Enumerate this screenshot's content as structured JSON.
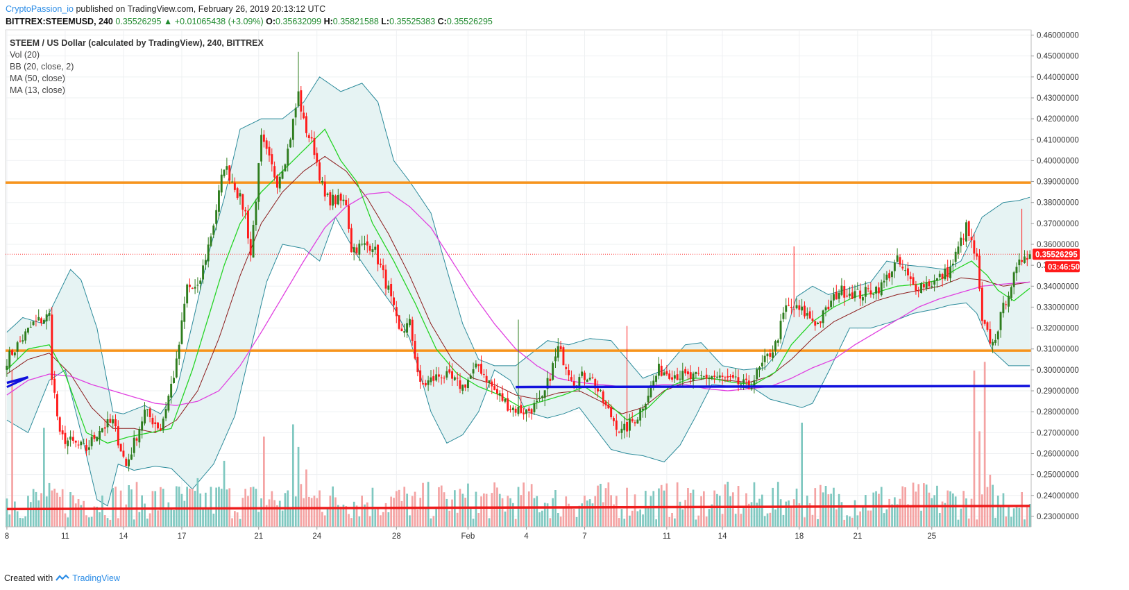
{
  "header": {
    "author": "CryptoPassion_io",
    "published_text": "published on TradingView.com, February 26, 2019 20:13:12 UTC",
    "symbol": "BITTREX:STEEMUSD, 240",
    "last": "0.35526295",
    "change": "+0.01065438 (+3.09%)",
    "o_label": "O:",
    "o_value": "0.35632099",
    "h_label": "H:",
    "h_value": "0.35821588",
    "l_label": "L:",
    "l_value": "0.35525383",
    "c_label": "C:",
    "c_value": "0.35526295"
  },
  "legend": {
    "title": "STEEM / US Dollar (calculated by TradingView), 240, BITTREX",
    "vol": "Vol (20)",
    "bb": "BB (20, close, 2)",
    "ma50": "MA (50, close)",
    "ma13": "MA (13, close)"
  },
  "footer": {
    "created_with": "Created with",
    "brand": "TradingView"
  },
  "colors": {
    "up": "#2e7d1e",
    "down": "#ff1a1a",
    "bb_band": "#2a8a9a",
    "bb_fill": "#e6f3f3",
    "ma13": "#25d425",
    "ma50": "#e040e0",
    "ma_mid": "#8b1a1a",
    "orange_line": "#f7941d",
    "blue_line": "#1111dd",
    "red_line": "#ee1c1c",
    "vol_up": "#7fc8c0",
    "vol_down": "#f4a3a3",
    "price_tag": "#ff1a1a"
  },
  "chart_data": {
    "type": "candlestick",
    "timeframe": "240",
    "y_axis": {
      "min": 0.225,
      "max": 0.4625,
      "ticks": [
        "0.46000000",
        "0.45000000",
        "0.44000000",
        "0.43000000",
        "0.42000000",
        "0.41000000",
        "0.40000000",
        "0.39000000",
        "0.38000000",
        "0.37000000",
        "0.36000000",
        "0.35000000",
        "0.34000000",
        "0.33000000",
        "0.32000000",
        "0.31000000",
        "0.30000000",
        "0.29000000",
        "0.28000000",
        "0.27000000",
        "0.26000000",
        "0.25000000",
        "0.24000000",
        "0.23000000"
      ]
    },
    "x_axis": {
      "ticks": [
        "8",
        "11",
        "14",
        "17",
        "21",
        "24",
        "28",
        "Feb",
        "4",
        "7",
        "11",
        "14",
        "18",
        "21",
        "25"
      ]
    },
    "anchors": [
      [
        0,
        0.305
      ],
      [
        10,
        0.322
      ],
      [
        16,
        0.326
      ],
      [
        17,
        0.298
      ],
      [
        20,
        0.268
      ],
      [
        30,
        0.262
      ],
      [
        35,
        0.272
      ],
      [
        40,
        0.275
      ],
      [
        45,
        0.254
      ],
      [
        52,
        0.28
      ],
      [
        58,
        0.272
      ],
      [
        64,
        0.303
      ],
      [
        68,
        0.34
      ],
      [
        72,
        0.338
      ],
      [
        78,
        0.37
      ],
      [
        82,
        0.398
      ],
      [
        86,
        0.388
      ],
      [
        90,
        0.375
      ],
      [
        92,
        0.355
      ],
      [
        96,
        0.41
      ],
      [
        102,
        0.39
      ],
      [
        106,
        0.405
      ],
      [
        110,
        0.432
      ],
      [
        112,
        0.418
      ],
      [
        116,
        0.405
      ],
      [
        120,
        0.382
      ],
      [
        128,
        0.38
      ],
      [
        130,
        0.358
      ],
      [
        138,
        0.36
      ],
      [
        144,
        0.338
      ],
      [
        148,
        0.318
      ],
      [
        152,
        0.322
      ],
      [
        156,
        0.292
      ],
      [
        164,
        0.298
      ],
      [
        172,
        0.292
      ],
      [
        178,
        0.302
      ],
      [
        184,
        0.29
      ],
      [
        190,
        0.282
      ],
      [
        196,
        0.28
      ],
      [
        202,
        0.285
      ],
      [
        208,
        0.31
      ],
      [
        214,
        0.295
      ],
      [
        220,
        0.298
      ],
      [
        226,
        0.282
      ],
      [
        232,
        0.27
      ],
      [
        238,
        0.278
      ],
      [
        246,
        0.3
      ],
      [
        252,
        0.298
      ],
      [
        258,
        0.296
      ],
      [
        266,
        0.297
      ],
      [
        272,
        0.295
      ],
      [
        280,
        0.292
      ],
      [
        290,
        0.312
      ],
      [
        294,
        0.33
      ],
      [
        300,
        0.328
      ],
      [
        306,
        0.322
      ],
      [
        314,
        0.338
      ],
      [
        322,
        0.336
      ],
      [
        330,
        0.34
      ],
      [
        336,
        0.352
      ],
      [
        342,
        0.34
      ],
      [
        350,
        0.342
      ],
      [
        356,
        0.348
      ],
      [
        362,
        0.368
      ],
      [
        366,
        0.352
      ],
      [
        368,
        0.322
      ],
      [
        372,
        0.312
      ],
      [
        378,
        0.338
      ],
      [
        384,
        0.356
      ],
      [
        386,
        0.355
      ]
    ],
    "bars": 387,
    "last_close": 0.35526295,
    "price_label": "0.35526295",
    "countdown": "03:46:50",
    "horizontal_lines": [
      {
        "name": "orange-resistance",
        "price": 0.3895
      },
      {
        "name": "orange-support",
        "price": 0.3092
      }
    ],
    "trend_lines": [
      {
        "name": "blue-support",
        "from": [
          192,
          0.2918
        ],
        "to": [
          386,
          0.2923
        ]
      },
      {
        "name": "blue-left-stub",
        "from": [
          0,
          0.2938
        ],
        "to": [
          8,
          0.2965
        ]
      },
      {
        "name": "red-volume-line",
        "from": [
          0,
          0.2335
        ],
        "to": [
          386,
          0.235
        ]
      }
    ],
    "bollinger_upper": [
      [
        0,
        0.318
      ],
      [
        6,
        0.325
      ],
      [
        14,
        0.322
      ],
      [
        24,
        0.348
      ],
      [
        28,
        0.343
      ],
      [
        34,
        0.32
      ],
      [
        40,
        0.28
      ],
      [
        44,
        0.279
      ],
      [
        52,
        0.283
      ],
      [
        58,
        0.279
      ],
      [
        64,
        0.29
      ],
      [
        70,
        0.322
      ],
      [
        76,
        0.355
      ],
      [
        82,
        0.382
      ],
      [
        88,
        0.415
      ],
      [
        96,
        0.42
      ],
      [
        104,
        0.42
      ],
      [
        112,
        0.428
      ],
      [
        118,
        0.44
      ],
      [
        126,
        0.433
      ],
      [
        134,
        0.437
      ],
      [
        140,
        0.428
      ],
      [
        146,
        0.4
      ],
      [
        152,
        0.39
      ],
      [
        160,
        0.375
      ],
      [
        166,
        0.348
      ],
      [
        172,
        0.322
      ],
      [
        178,
        0.305
      ],
      [
        184,
        0.302
      ],
      [
        192,
        0.302
      ],
      [
        198,
        0.308
      ],
      [
        204,
        0.314
      ],
      [
        212,
        0.312
      ],
      [
        220,
        0.315
      ],
      [
        228,
        0.314
      ],
      [
        234,
        0.305
      ],
      [
        240,
        0.296
      ],
      [
        248,
        0.3
      ],
      [
        256,
        0.312
      ],
      [
        262,
        0.313
      ],
      [
        270,
        0.302
      ],
      [
        278,
        0.3
      ],
      [
        286,
        0.301
      ],
      [
        292,
        0.31
      ],
      [
        298,
        0.335
      ],
      [
        304,
        0.34
      ],
      [
        310,
        0.336
      ],
      [
        318,
        0.339
      ],
      [
        326,
        0.342
      ],
      [
        332,
        0.352
      ],
      [
        340,
        0.35
      ],
      [
        348,
        0.349
      ],
      [
        354,
        0.348
      ],
      [
        360,
        0.352
      ],
      [
        368,
        0.373
      ],
      [
        376,
        0.38
      ],
      [
        382,
        0.381
      ],
      [
        386,
        0.3825
      ]
    ],
    "bollinger_lower": [
      [
        0,
        0.276
      ],
      [
        8,
        0.27
      ],
      [
        16,
        0.295
      ],
      [
        22,
        0.3
      ],
      [
        28,
        0.27
      ],
      [
        34,
        0.238
      ],
      [
        38,
        0.235
      ],
      [
        42,
        0.255
      ],
      [
        48,
        0.252
      ],
      [
        56,
        0.254
      ],
      [
        62,
        0.253
      ],
      [
        70,
        0.243
      ],
      [
        78,
        0.255
      ],
      [
        86,
        0.278
      ],
      [
        92,
        0.31
      ],
      [
        98,
        0.342
      ],
      [
        104,
        0.36
      ],
      [
        112,
        0.358
      ],
      [
        118,
        0.352
      ],
      [
        124,
        0.373
      ],
      [
        132,
        0.355
      ],
      [
        138,
        0.344
      ],
      [
        146,
        0.33
      ],
      [
        152,
        0.315
      ],
      [
        160,
        0.28
      ],
      [
        166,
        0.265
      ],
      [
        172,
        0.269
      ],
      [
        178,
        0.28
      ],
      [
        184,
        0.3
      ],
      [
        190,
        0.295
      ],
      [
        196,
        0.28
      ],
      [
        204,
        0.277
      ],
      [
        210,
        0.279
      ],
      [
        216,
        0.282
      ],
      [
        222,
        0.272
      ],
      [
        228,
        0.262
      ],
      [
        234,
        0.26
      ],
      [
        240,
        0.259
      ],
      [
        248,
        0.256
      ],
      [
        254,
        0.264
      ],
      [
        260,
        0.278
      ],
      [
        266,
        0.293
      ],
      [
        274,
        0.292
      ],
      [
        282,
        0.291
      ],
      [
        288,
        0.286
      ],
      [
        294,
        0.284
      ],
      [
        300,
        0.282
      ],
      [
        304,
        0.284
      ],
      [
        310,
        0.299
      ],
      [
        318,
        0.32
      ],
      [
        326,
        0.32
      ],
      [
        334,
        0.323
      ],
      [
        342,
        0.327
      ],
      [
        350,
        0.329
      ],
      [
        356,
        0.331
      ],
      [
        362,
        0.332
      ],
      [
        366,
        0.327
      ],
      [
        372,
        0.309
      ],
      [
        378,
        0.302
      ],
      [
        386,
        0.302
      ]
    ],
    "ma13": [
      [
        0,
        0.3
      ],
      [
        8,
        0.31
      ],
      [
        16,
        0.312
      ],
      [
        22,
        0.298
      ],
      [
        30,
        0.27
      ],
      [
        38,
        0.265
      ],
      [
        46,
        0.268
      ],
      [
        54,
        0.27
      ],
      [
        62,
        0.272
      ],
      [
        70,
        0.3
      ],
      [
        76,
        0.325
      ],
      [
        82,
        0.35
      ],
      [
        88,
        0.37
      ],
      [
        96,
        0.385
      ],
      [
        104,
        0.395
      ],
      [
        112,
        0.405
      ],
      [
        120,
        0.415
      ],
      [
        126,
        0.4
      ],
      [
        132,
        0.39
      ],
      [
        138,
        0.37
      ],
      [
        146,
        0.352
      ],
      [
        154,
        0.332
      ],
      [
        162,
        0.31
      ],
      [
        170,
        0.298
      ],
      [
        178,
        0.292
      ],
      [
        186,
        0.288
      ],
      [
        194,
        0.282
      ],
      [
        202,
        0.285
      ],
      [
        210,
        0.288
      ],
      [
        218,
        0.292
      ],
      [
        226,
        0.285
      ],
      [
        234,
        0.276
      ],
      [
        242,
        0.282
      ],
      [
        250,
        0.292
      ],
      [
        258,
        0.296
      ],
      [
        266,
        0.296
      ],
      [
        274,
        0.294
      ],
      [
        282,
        0.293
      ],
      [
        290,
        0.299
      ],
      [
        296,
        0.312
      ],
      [
        304,
        0.323
      ],
      [
        312,
        0.33
      ],
      [
        320,
        0.335
      ],
      [
        328,
        0.337
      ],
      [
        336,
        0.34
      ],
      [
        344,
        0.341
      ],
      [
        352,
        0.343
      ],
      [
        358,
        0.348
      ],
      [
        364,
        0.352
      ],
      [
        370,
        0.345
      ],
      [
        374,
        0.338
      ],
      [
        380,
        0.333
      ],
      [
        386,
        0.339
      ]
    ],
    "ma_mid": [
      [
        0,
        0.298
      ],
      [
        8,
        0.305
      ],
      [
        16,
        0.308
      ],
      [
        24,
        0.298
      ],
      [
        32,
        0.282
      ],
      [
        40,
        0.272
      ],
      [
        48,
        0.272
      ],
      [
        56,
        0.27
      ],
      [
        64,
        0.276
      ],
      [
        72,
        0.29
      ],
      [
        80,
        0.315
      ],
      [
        88,
        0.345
      ],
      [
        96,
        0.37
      ],
      [
        104,
        0.385
      ],
      [
        112,
        0.395
      ],
      [
        120,
        0.402
      ],
      [
        128,
        0.395
      ],
      [
        136,
        0.382
      ],
      [
        144,
        0.365
      ],
      [
        152,
        0.345
      ],
      [
        160,
        0.322
      ],
      [
        168,
        0.305
      ],
      [
        176,
        0.296
      ],
      [
        184,
        0.293
      ],
      [
        192,
        0.288
      ],
      [
        200,
        0.286
      ],
      [
        208,
        0.289
      ],
      [
        216,
        0.29
      ],
      [
        224,
        0.285
      ],
      [
        232,
        0.279
      ],
      [
        240,
        0.282
      ],
      [
        248,
        0.29
      ],
      [
        256,
        0.294
      ],
      [
        264,
        0.296
      ],
      [
        272,
        0.295
      ],
      [
        280,
        0.294
      ],
      [
        288,
        0.297
      ],
      [
        296,
        0.305
      ],
      [
        304,
        0.315
      ],
      [
        312,
        0.323
      ],
      [
        320,
        0.328
      ],
      [
        328,
        0.333
      ],
      [
        336,
        0.336
      ],
      [
        344,
        0.338
      ],
      [
        352,
        0.34
      ],
      [
        360,
        0.344
      ],
      [
        368,
        0.343
      ],
      [
        376,
        0.34
      ],
      [
        386,
        0.342
      ]
    ],
    "ma50": [
      [
        0,
        0.288
      ],
      [
        8,
        0.295
      ],
      [
        16,
        0.298
      ],
      [
        24,
        0.297
      ],
      [
        32,
        0.293
      ],
      [
        40,
        0.29
      ],
      [
        48,
        0.287
      ],
      [
        56,
        0.284
      ],
      [
        64,
        0.283
      ],
      [
        72,
        0.285
      ],
      [
        80,
        0.29
      ],
      [
        88,
        0.302
      ],
      [
        96,
        0.318
      ],
      [
        104,
        0.335
      ],
      [
        112,
        0.352
      ],
      [
        120,
        0.368
      ],
      [
        128,
        0.378
      ],
      [
        136,
        0.384
      ],
      [
        144,
        0.385
      ],
      [
        152,
        0.378
      ],
      [
        160,
        0.368
      ],
      [
        168,
        0.352
      ],
      [
        176,
        0.336
      ],
      [
        184,
        0.322
      ],
      [
        192,
        0.31
      ],
      [
        200,
        0.302
      ],
      [
        208,
        0.296
      ],
      [
        216,
        0.294
      ],
      [
        224,
        0.293
      ],
      [
        232,
        0.292
      ],
      [
        240,
        0.292
      ],
      [
        248,
        0.293
      ],
      [
        256,
        0.293
      ],
      [
        264,
        0.291
      ],
      [
        272,
        0.29
      ],
      [
        280,
        0.291
      ],
      [
        288,
        0.292
      ],
      [
        296,
        0.296
      ],
      [
        304,
        0.301
      ],
      [
        312,
        0.305
      ],
      [
        320,
        0.312
      ],
      [
        328,
        0.318
      ],
      [
        336,
        0.324
      ],
      [
        344,
        0.33
      ],
      [
        352,
        0.334
      ],
      [
        360,
        0.337
      ],
      [
        368,
        0.34
      ],
      [
        376,
        0.341
      ],
      [
        386,
        0.342
      ]
    ],
    "volume_max": 0.083
  }
}
